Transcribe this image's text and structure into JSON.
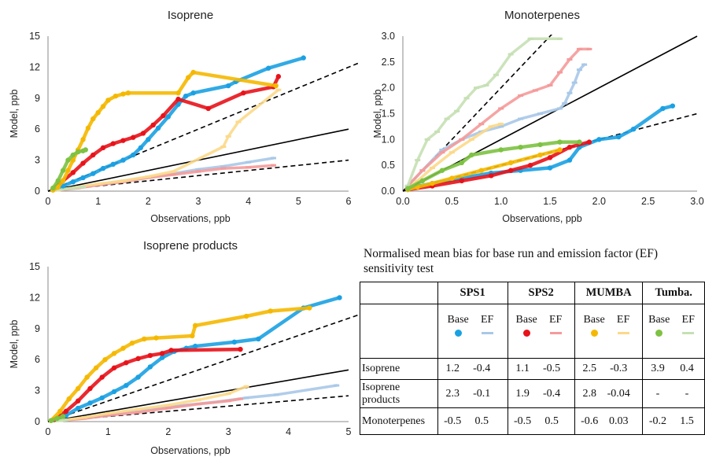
{
  "chart_data": [
    {
      "type": "scatter",
      "title": "Isoprene",
      "xlabel": "Observations, ppb",
      "ylabel": "Model, ppb",
      "xlim": [
        0,
        6
      ],
      "ylim": [
        0,
        15
      ],
      "xticks": [
        0,
        1,
        2,
        3,
        4,
        5,
        6
      ],
      "yticks": [
        0,
        3,
        6,
        9,
        12,
        15
      ],
      "reference_lines": [
        "1:1",
        "1:2",
        "2:1"
      ],
      "series": [
        {
          "name": "SPS1 Base",
          "color": "#1ba1e2",
          "marker": "dot",
          "x": [
            0.1,
            0.3,
            0.5,
            0.7,
            0.9,
            1.1,
            1.3,
            1.5,
            1.7,
            1.85,
            2.0,
            2.2,
            2.4,
            2.6,
            2.75,
            2.9,
            3.6,
            3.75,
            4.4,
            5.1
          ],
          "y": [
            0.2,
            0.5,
            0.9,
            1.3,
            1.7,
            2.2,
            2.6,
            3.0,
            3.5,
            4.2,
            5.0,
            6.1,
            7.2,
            8.4,
            9.2,
            9.5,
            10.2,
            10.6,
            11.9,
            12.9
          ]
        },
        {
          "name": "SPS1 EF",
          "color": "#a8c8e8",
          "marker": "dash",
          "x": [
            0.2,
            0.5,
            0.8,
            1.1,
            1.5,
            2.0,
            2.5,
            3.0,
            3.5,
            4.0,
            4.5
          ],
          "y": [
            0.1,
            0.3,
            0.5,
            0.7,
            1.0,
            1.3,
            1.7,
            2.1,
            2.4,
            2.8,
            3.2
          ]
        },
        {
          "name": "SPS2 Base",
          "color": "#e8121a",
          "marker": "dot",
          "x": [
            0.1,
            0.3,
            0.5,
            0.7,
            0.9,
            1.1,
            1.3,
            1.5,
            1.7,
            1.9,
            2.1,
            2.3,
            2.6,
            3.2,
            3.9,
            4.5,
            4.6
          ],
          "y": [
            0.2,
            1.0,
            1.8,
            2.7,
            3.5,
            4.2,
            4.6,
            4.9,
            5.2,
            5.6,
            6.4,
            7.3,
            8.9,
            8.0,
            9.5,
            10.1,
            11.1
          ]
        },
        {
          "name": "SPS2 EF",
          "color": "#f59a9a",
          "marker": "dash",
          "x": [
            0.2,
            0.6,
            1.0,
            1.5,
            2.0,
            2.5,
            3.0,
            3.5,
            4.0,
            4.5
          ],
          "y": [
            0.1,
            0.3,
            0.6,
            0.9,
            1.3,
            1.6,
            1.9,
            2.2,
            2.3,
            2.5
          ]
        },
        {
          "name": "MUMBA Base",
          "color": "#f5b800",
          "marker": "dot",
          "x": [
            0.1,
            0.2,
            0.3,
            0.4,
            0.5,
            0.6,
            0.7,
            0.8,
            0.9,
            1.0,
            1.1,
            1.2,
            1.35,
            1.5,
            1.6,
            2.6,
            2.8,
            2.9,
            4.55
          ],
          "y": [
            0.1,
            0.4,
            1.0,
            2.0,
            3.0,
            4.0,
            5.0,
            6.1,
            7.0,
            7.6,
            8.2,
            8.8,
            9.2,
            9.4,
            9.5,
            9.5,
            11.0,
            11.5,
            10.2
          ]
        },
        {
          "name": "MUMBA EF",
          "color": "#fcd98a",
          "marker": "dash",
          "x": [
            0.2,
            0.6,
            1.0,
            1.5,
            2.0,
            2.5,
            3.5,
            3.6,
            3.8,
            4.6
          ],
          "y": [
            0.1,
            0.4,
            0.7,
            1.0,
            1.4,
            1.9,
            4.3,
            5.3,
            6.7,
            9.8
          ]
        },
        {
          "name": "Tumbarumba Base",
          "color": "#7dc242",
          "marker": "dot",
          "x": [
            0.1,
            0.2,
            0.3,
            0.4,
            0.5,
            0.6,
            0.7,
            0.75
          ],
          "y": [
            0.3,
            1.0,
            2.0,
            3.0,
            3.5,
            3.8,
            3.9,
            4.0
          ]
        },
        {
          "name": "Tumbarumba EF",
          "color": "#c6e0b4",
          "marker": "dash",
          "x": [
            0.1,
            0.3,
            0.5,
            0.7
          ],
          "y": [
            0.1,
            0.2,
            0.3,
            0.4
          ]
        }
      ]
    },
    {
      "type": "scatter",
      "title": "Monoterpenes",
      "xlabel": "Observations, ppb",
      "ylabel": "Model, ppb",
      "xlim": [
        0,
        3
      ],
      "ylim": [
        0,
        3
      ],
      "xticks": [
        0.0,
        0.5,
        1.0,
        1.5,
        2.0,
        2.5,
        3.0
      ],
      "yticks": [
        0.0,
        0.5,
        1.0,
        1.5,
        2.0,
        2.5,
        3.0
      ],
      "reference_lines": [
        "1:1",
        "1:2",
        "2:1"
      ],
      "series": [
        {
          "name": "SPS1 Base",
          "color": "#1ba1e2",
          "marker": "dot",
          "x": [
            0.05,
            0.3,
            0.6,
            0.9,
            1.2,
            1.5,
            1.7,
            1.8,
            2.0,
            2.2,
            2.35,
            2.65,
            2.75
          ],
          "y": [
            0.05,
            0.15,
            0.25,
            0.35,
            0.4,
            0.45,
            0.6,
            0.85,
            1.0,
            1.05,
            1.2,
            1.6,
            1.65
          ]
        },
        {
          "name": "SPS1 EF",
          "color": "#a8c8e8",
          "marker": "dash",
          "x": [
            0.05,
            0.2,
            0.4,
            0.6,
            0.8,
            1.0,
            1.2,
            1.4,
            1.6,
            1.65,
            1.7,
            1.75,
            1.8,
            1.85
          ],
          "y": [
            0.1,
            0.4,
            0.8,
            1.0,
            1.15,
            1.25,
            1.4,
            1.5,
            1.6,
            1.7,
            1.9,
            2.1,
            2.35,
            2.45
          ]
        },
        {
          "name": "SPS2 Base",
          "color": "#e8121a",
          "marker": "dot",
          "x": [
            0.05,
            0.3,
            0.6,
            0.9,
            1.1,
            1.3,
            1.5,
            1.7,
            1.9
          ],
          "y": [
            0.03,
            0.1,
            0.2,
            0.3,
            0.4,
            0.5,
            0.65,
            0.85,
            0.95
          ]
        },
        {
          "name": "SPS2 EF",
          "color": "#f59a9a",
          "marker": "dash",
          "x": [
            0.05,
            0.2,
            0.4,
            0.6,
            0.8,
            1.0,
            1.2,
            1.35,
            1.5,
            1.6,
            1.7,
            1.8,
            1.9
          ],
          "y": [
            0.1,
            0.4,
            0.75,
            1.0,
            1.3,
            1.6,
            1.85,
            1.95,
            2.05,
            2.3,
            2.55,
            2.75,
            2.75
          ]
        },
        {
          "name": "MUMBA Base",
          "color": "#f5b800",
          "marker": "dot",
          "x": [
            0.05,
            0.15,
            0.3,
            0.5,
            0.8,
            1.1,
            1.4,
            1.6
          ],
          "y": [
            0.03,
            0.08,
            0.15,
            0.25,
            0.4,
            0.55,
            0.7,
            0.8
          ]
        },
        {
          "name": "MUMBA EF",
          "color": "#fcd98a",
          "marker": "dash",
          "x": [
            0.05,
            0.15,
            0.3,
            0.5,
            0.7,
            0.9,
            1.0
          ],
          "y": [
            0.05,
            0.2,
            0.45,
            0.75,
            1.0,
            1.25,
            1.3
          ]
        },
        {
          "name": "Tumbarumba Base",
          "color": "#7dc242",
          "marker": "dot",
          "x": [
            0.05,
            0.2,
            0.4,
            0.6,
            0.7,
            1.0,
            1.2,
            1.4,
            1.6,
            1.8
          ],
          "y": [
            0.05,
            0.2,
            0.4,
            0.55,
            0.7,
            0.8,
            0.85,
            0.9,
            0.95,
            0.95
          ]
        },
        {
          "name": "Tumbarumba EF",
          "color": "#c6e0b4",
          "marker": "dash",
          "x": [
            0.05,
            0.15,
            0.25,
            0.35,
            0.45,
            0.55,
            0.65,
            0.75,
            0.85,
            0.95,
            1.1,
            1.3,
            1.6
          ],
          "y": [
            0.1,
            0.6,
            1.0,
            1.15,
            1.4,
            1.55,
            1.8,
            2.0,
            2.05,
            2.25,
            2.65,
            2.95,
            2.95
          ]
        }
      ]
    },
    {
      "type": "scatter",
      "title": "Isoprene products",
      "xlabel": "Observations, ppb",
      "ylabel": "Model, ppb",
      "xlim": [
        0,
        5
      ],
      "ylim": [
        0,
        15
      ],
      "xticks": [
        0,
        1,
        2,
        3,
        4,
        5
      ],
      "yticks": [
        0,
        3,
        6,
        9,
        12,
        15
      ],
      "reference_lines": [
        "1:1",
        "1:2",
        "2:1"
      ],
      "series": [
        {
          "name": "SPS1 Base",
          "color": "#1ba1e2",
          "marker": "dot",
          "x": [
            0.1,
            0.3,
            0.5,
            0.7,
            0.9,
            1.1,
            1.3,
            1.5,
            1.7,
            1.9,
            2.1,
            2.3,
            2.45,
            3.1,
            3.5,
            4.25,
            4.85
          ],
          "y": [
            0.2,
            0.6,
            1.3,
            1.8,
            2.3,
            2.9,
            3.5,
            4.3,
            5.3,
            6.2,
            6.8,
            7.1,
            7.3,
            7.7,
            8.0,
            11.0,
            12.0
          ]
        },
        {
          "name": "SPS1 EF",
          "color": "#a8c8e8",
          "marker": "dash",
          "x": [
            0.2,
            0.5,
            0.9,
            1.3,
            1.8,
            2.3,
            2.8,
            3.3,
            3.8,
            4.8
          ],
          "y": [
            0.1,
            0.3,
            0.6,
            0.9,
            1.3,
            1.6,
            1.9,
            2.3,
            2.6,
            3.5
          ]
        },
        {
          "name": "SPS2 Base",
          "color": "#e8121a",
          "marker": "dot",
          "x": [
            0.1,
            0.3,
            0.5,
            0.7,
            0.9,
            1.1,
            1.3,
            1.5,
            1.7,
            1.9,
            2.05,
            3.2
          ],
          "y": [
            0.2,
            1.0,
            2.0,
            3.2,
            4.3,
            5.2,
            5.7,
            6.1,
            6.4,
            6.6,
            6.9,
            7.0
          ]
        },
        {
          "name": "SPS2 EF",
          "color": "#f59a9a",
          "marker": "dash",
          "x": [
            0.2,
            0.6,
            1.0,
            1.5,
            2.0,
            2.5,
            3.0,
            3.2
          ],
          "y": [
            0.1,
            0.3,
            0.6,
            0.9,
            1.3,
            1.7,
            2.0,
            2.2
          ]
        },
        {
          "name": "MUMBA Base",
          "color": "#f5b800",
          "marker": "dot",
          "x": [
            0.05,
            0.2,
            0.35,
            0.5,
            0.65,
            0.8,
            0.95,
            1.1,
            1.25,
            1.4,
            1.6,
            1.8,
            2.4,
            2.45,
            3.3,
            3.7,
            4.35
          ],
          "y": [
            0.1,
            1.0,
            2.2,
            3.2,
            4.3,
            5.2,
            6.0,
            6.6,
            7.1,
            7.6,
            8.0,
            8.1,
            8.3,
            9.3,
            10.2,
            10.7,
            11.0
          ]
        },
        {
          "name": "MUMBA EF",
          "color": "#fcd98a",
          "marker": "dash",
          "x": [
            0.2,
            0.6,
            1.0,
            1.5,
            2.0,
            2.5,
            3.0,
            3.3
          ],
          "y": [
            0.1,
            0.4,
            0.8,
            1.2,
            1.6,
            2.1,
            2.7,
            3.4
          ]
        },
        {
          "name": "Tumbarumba Base",
          "color": "#7dc242",
          "marker": "dot",
          "x": [
            0.05,
            0.15,
            0.25
          ],
          "y": [
            0.1,
            0.3,
            0.5
          ]
        },
        {
          "name": "Tumbarumba EF",
          "color": "#c6e0b4",
          "marker": "dash",
          "x": [
            0.1,
            0.2,
            0.3
          ],
          "y": [
            0.05,
            0.1,
            0.15
          ]
        }
      ]
    }
  ],
  "table": {
    "caption": "Normalised mean bias for base run and emission factor (EF) sensitivity test",
    "sites": [
      "SPS1",
      "SPS2",
      "MUMBA",
      "Tumba."
    ],
    "run_labels": [
      "Base",
      "EF"
    ],
    "legend": [
      {
        "base_color": "#1ba1e2",
        "ef_color": "#a8c8e8"
      },
      {
        "base_color": "#e8121a",
        "ef_color": "#f59a9a"
      },
      {
        "base_color": "#f5b800",
        "ef_color": "#fcd98a"
      },
      {
        "base_color": "#7dc242",
        "ef_color": "#c6e0b4"
      }
    ],
    "rows": [
      {
        "label": "Isoprene",
        "values": [
          "1.2",
          "-0.4",
          "1.1",
          "-0.5",
          "2.5",
          "-0.3",
          "3.9",
          "0.4"
        ]
      },
      {
        "label": "Isoprene products",
        "values": [
          "2.3",
          "-0.1",
          "1.9",
          "-0.4",
          "2.8",
          "-0.04",
          "-",
          "-"
        ]
      },
      {
        "label": "Monoterpenes",
        "values": [
          "-0.5",
          "0.5",
          "-0.5",
          "0.5",
          "-0.6",
          "0.03",
          "-0.2",
          "1.5"
        ]
      }
    ]
  }
}
